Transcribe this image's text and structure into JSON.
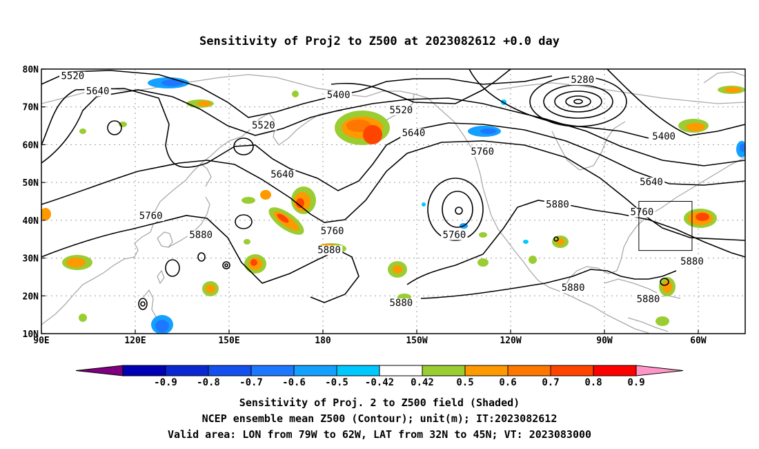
{
  "title": "Sensitivity of Proj2 to Z500 at 2023082612 +0.0 day",
  "x_ticks": [
    {
      "lon": 90,
      "label": "90E"
    },
    {
      "lon": 120,
      "label": "120E"
    },
    {
      "lon": 150,
      "label": "150E"
    },
    {
      "lon": 180,
      "label": "180"
    },
    {
      "lon": 210,
      "label": "150W"
    },
    {
      "lon": 240,
      "label": "120W"
    },
    {
      "lon": 270,
      "label": "90W"
    },
    {
      "lon": 300,
      "label": "60W"
    }
  ],
  "y_ticks": [
    {
      "lat": 80,
      "label": "80N"
    },
    {
      "lat": 70,
      "label": "70N"
    },
    {
      "lat": 60,
      "label": "60N"
    },
    {
      "lat": 50,
      "label": "50N"
    },
    {
      "lat": 40,
      "label": "40N"
    },
    {
      "lat": 30,
      "label": "30N"
    },
    {
      "lat": 20,
      "label": "20N"
    },
    {
      "lat": 10,
      "label": "10N"
    }
  ],
  "extent": {
    "lon": [
      90,
      315
    ],
    "lat": [
      10,
      80
    ]
  },
  "valid_box": {
    "lon": [
      281,
      298
    ],
    "lat": [
      32,
      45
    ]
  },
  "contour_labels": [
    {
      "text": "5520",
      "lon": 100,
      "lat": 77.5
    },
    {
      "text": "5640",
      "lon": 108,
      "lat": 73.5
    },
    {
      "text": "5400",
      "lon": 185,
      "lat": 72.5
    },
    {
      "text": "5520",
      "lon": 161,
      "lat": 64.5
    },
    {
      "text": "5520",
      "lon": 205,
      "lat": 68.5
    },
    {
      "text": "5640",
      "lon": 209,
      "lat": 62.5
    },
    {
      "text": "5760",
      "lon": 231,
      "lat": 57.5
    },
    {
      "text": "5640",
      "lon": 167,
      "lat": 51.5
    },
    {
      "text": "5280",
      "lon": 263,
      "lat": 76.5
    },
    {
      "text": "5400",
      "lon": 289,
      "lat": 61.5
    },
    {
      "text": "5640",
      "lon": 285,
      "lat": 49.5
    },
    {
      "text": "5760",
      "lon": 282,
      "lat": 41.5
    },
    {
      "text": "5880",
      "lon": 255,
      "lat": 43.5
    },
    {
      "text": "5760",
      "lon": 125,
      "lat": 40.5
    },
    {
      "text": "5880",
      "lon": 141,
      "lat": 35.5
    },
    {
      "text": "5760",
      "lon": 183,
      "lat": 36.5
    },
    {
      "text": "5880",
      "lon": 182,
      "lat": 31.5
    },
    {
      "text": "5760",
      "lon": 222,
      "lat": 35.5
    },
    {
      "text": "5880",
      "lon": 260,
      "lat": 21.5
    },
    {
      "text": "5880",
      "lon": 284,
      "lat": 18.5
    },
    {
      "text": "5880",
      "lon": 298,
      "lat": 28.5
    },
    {
      "text": "5880",
      "lon": 205,
      "lat": 17.5
    }
  ],
  "colorbar": {
    "colors": [
      "#7e007e",
      "#0000b4",
      "#0a28d2",
      "#1450ee",
      "#1e78ff",
      "#14a0ff",
      "#00c8ff",
      "#ffffff",
      "#9acd32",
      "#ff9900",
      "#ff7700",
      "#ff4400",
      "#ff0000",
      "#ff96c8"
    ],
    "labels": [
      "-0.9",
      "-0.8",
      "-0.7",
      "-0.6",
      "-0.5",
      "-0.42",
      "0.42",
      "0.5",
      "0.6",
      "0.7",
      "0.8",
      "0.9"
    ]
  },
  "footer": {
    "line1": "Sensitivity of Proj. 2 to Z500 field (Shaded)",
    "line2": "NCEP ensemble mean Z500 (Contour); unit(m); IT:2023082612",
    "line3": "Valid area: LON from 79W to 62W, LAT from 32N to 45N; VT: 2023083000"
  }
}
